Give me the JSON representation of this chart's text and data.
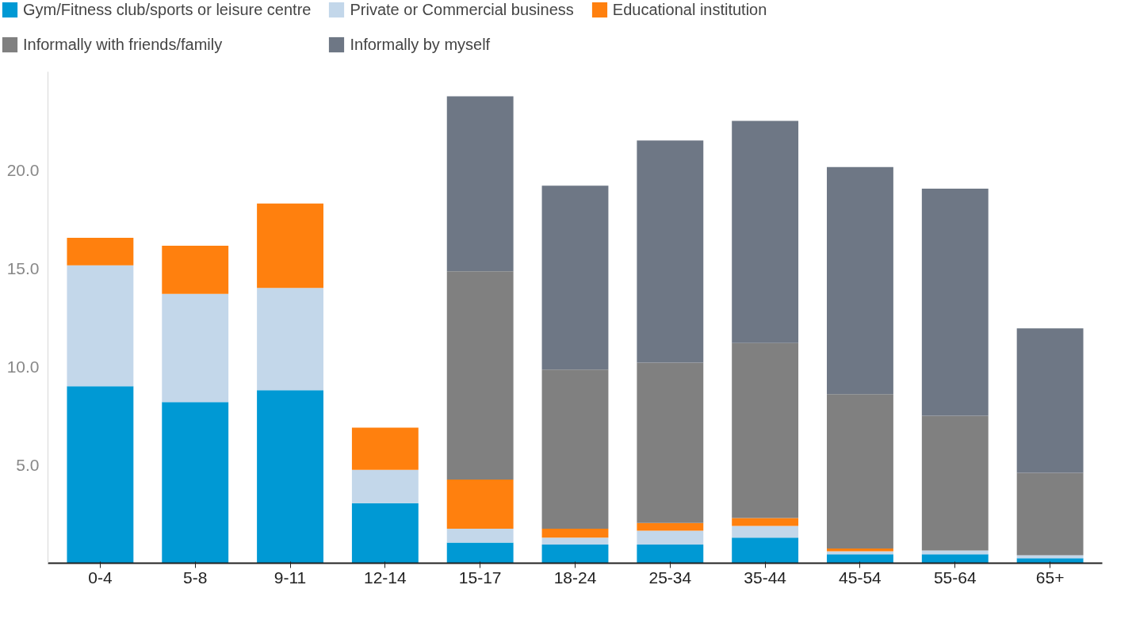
{
  "chart_data": {
    "type": "bar",
    "stacked": true,
    "legend": "top",
    "grid": false,
    "categories": [
      "0-4",
      "5-8",
      "9-11",
      "12-14",
      "15-17",
      "18-24",
      "25-34",
      "35-44",
      "45-54",
      "55-64",
      "65+"
    ],
    "ylim": [
      0,
      25
    ],
    "yticks": [
      {
        "value": 5,
        "label": "5.0"
      },
      {
        "value": 10,
        "label": "10.0"
      },
      {
        "value": 15,
        "label": "15.0"
      },
      {
        "value": 20,
        "label": "20.0"
      }
    ],
    "series": [
      {
        "name": "Gym/Fitness club/sports or leisure centre",
        "color": "#0099d4",
        "values": [
          9.0,
          8.2,
          8.8,
          3.05,
          1.05,
          0.95,
          0.95,
          1.3,
          0.45,
          0.45,
          0.25
        ]
      },
      {
        "name": "Private or Commercial business",
        "color": "#c3d7ea",
        "values": [
          6.15,
          5.5,
          5.2,
          1.7,
          0.7,
          0.35,
          0.7,
          0.6,
          0.15,
          0.2,
          0.15
        ]
      },
      {
        "name": "Educational institution",
        "color": "#ff800e",
        "values": [
          1.4,
          2.45,
          4.3,
          2.15,
          2.5,
          0.45,
          0.4,
          0.4,
          0.15,
          0,
          0
        ]
      },
      {
        "name": "Informally with friends/family",
        "color": "#808080",
        "values": [
          null,
          null,
          null,
          null,
          10.6,
          8.1,
          8.15,
          8.9,
          7.85,
          6.85,
          4.2
        ]
      },
      {
        "name": "Informally by myself",
        "color": "#6e7785",
        "values": [
          null,
          null,
          null,
          null,
          8.9,
          9.35,
          11.3,
          11.3,
          11.55,
          11.55,
          7.35
        ]
      }
    ]
  }
}
